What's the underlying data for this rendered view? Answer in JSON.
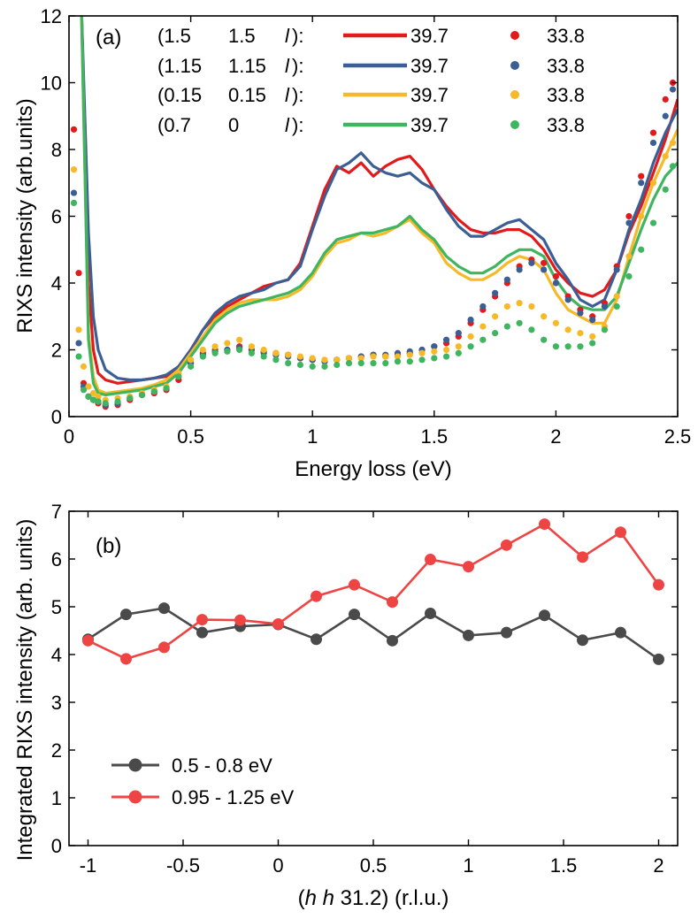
{
  "chart_data": [
    {
      "type": "line",
      "panel_label": "(a)",
      "xlabel": "Energy loss (eV)",
      "ylabel": "RIXS intensity (arb.units)",
      "xlim": [
        0,
        2.5
      ],
      "ylim": [
        0,
        12
      ],
      "xticks": [
        "0",
        "0.5",
        "1",
        "1.5",
        "2",
        "2.5"
      ],
      "yticks": [
        "0",
        "2",
        "4",
        "6",
        "8",
        "10",
        "12"
      ],
      "grid": false,
      "legend_position": "top",
      "legend_rows": [
        {
          "q_h": "(1.5",
          "q_k": "1.5",
          "q_l": "l",
          "q_end": "):",
          "line_label": "39.7",
          "dot_label": "33.8",
          "color": "#e31a1c"
        },
        {
          "q_h": "(1.15",
          "q_k": "1.15",
          "q_l": "l",
          "q_end": "):",
          "line_label": "39.7",
          "dot_label": "33.8",
          "color": "#3b5f95"
        },
        {
          "q_h": "(0.15",
          "q_k": "0.15",
          "q_l": "l",
          "q_end": "):",
          "line_label": "39.7",
          "dot_label": "33.8",
          "color": "#f7b928"
        },
        {
          "q_h": "(0.7",
          "q_k": "0",
          "q_l": "l",
          "q_end": "):",
          "line_label": "39.7",
          "dot_label": "33.8",
          "color": "#3fb560"
        }
      ],
      "series": [
        {
          "style": "line",
          "color": "#e31a1c",
          "x": [
            0.05,
            0.08,
            0.1,
            0.12,
            0.15,
            0.2,
            0.25,
            0.3,
            0.35,
            0.4,
            0.45,
            0.5,
            0.55,
            0.6,
            0.65,
            0.7,
            0.75,
            0.8,
            0.85,
            0.9,
            0.95,
            1.0,
            1.05,
            1.1,
            1.15,
            1.2,
            1.25,
            1.3,
            1.35,
            1.4,
            1.45,
            1.5,
            1.55,
            1.6,
            1.65,
            1.7,
            1.75,
            1.8,
            1.85,
            1.9,
            1.95,
            2.0,
            2.05,
            2.1,
            2.15,
            2.2,
            2.25,
            2.3,
            2.35,
            2.4,
            2.45,
            2.5
          ],
          "y": [
            12.5,
            4.0,
            2.0,
            1.3,
            1.1,
            1.0,
            1.05,
            1.1,
            1.15,
            1.2,
            1.5,
            2.0,
            2.6,
            3.0,
            3.3,
            3.5,
            3.7,
            3.9,
            4.0,
            4.1,
            4.6,
            5.7,
            6.8,
            7.5,
            7.3,
            7.6,
            7.2,
            7.5,
            7.7,
            7.8,
            7.4,
            6.8,
            6.3,
            5.9,
            5.6,
            5.5,
            5.5,
            5.6,
            5.6,
            5.4,
            5.0,
            4.4,
            4.0,
            3.7,
            3.6,
            3.8,
            4.4,
            5.5,
            6.3,
            7.3,
            8.3,
            9.5
          ]
        },
        {
          "style": "line",
          "color": "#3b5f95",
          "x": [
            0.05,
            0.08,
            0.1,
            0.12,
            0.15,
            0.2,
            0.25,
            0.3,
            0.35,
            0.4,
            0.45,
            0.5,
            0.55,
            0.6,
            0.65,
            0.7,
            0.75,
            0.8,
            0.85,
            0.9,
            0.95,
            1.0,
            1.05,
            1.1,
            1.15,
            1.2,
            1.25,
            1.3,
            1.35,
            1.4,
            1.45,
            1.5,
            1.55,
            1.6,
            1.65,
            1.7,
            1.75,
            1.8,
            1.85,
            1.9,
            1.95,
            2.0,
            2.05,
            2.1,
            2.15,
            2.2,
            2.25,
            2.3,
            2.35,
            2.4,
            2.45,
            2.5
          ],
          "y": [
            12.5,
            5.5,
            3.0,
            2.0,
            1.4,
            1.15,
            1.1,
            1.1,
            1.15,
            1.25,
            1.5,
            2.0,
            2.6,
            3.1,
            3.4,
            3.6,
            3.7,
            3.8,
            4.0,
            4.1,
            4.5,
            5.6,
            6.6,
            7.4,
            7.6,
            7.9,
            7.5,
            7.3,
            7.2,
            7.3,
            7.0,
            6.8,
            6.2,
            5.7,
            5.4,
            5.4,
            5.6,
            5.8,
            5.9,
            5.6,
            5.3,
            4.6,
            4.1,
            3.5,
            3.3,
            3.5,
            4.4,
            5.6,
            6.5,
            7.6,
            8.5,
            9.2
          ]
        },
        {
          "style": "line",
          "color": "#f7b928",
          "x": [
            0.05,
            0.08,
            0.1,
            0.12,
            0.15,
            0.2,
            0.25,
            0.3,
            0.35,
            0.4,
            0.45,
            0.5,
            0.55,
            0.6,
            0.65,
            0.7,
            0.75,
            0.8,
            0.85,
            0.9,
            0.95,
            1.0,
            1.05,
            1.1,
            1.15,
            1.2,
            1.25,
            1.3,
            1.35,
            1.4,
            1.45,
            1.5,
            1.55,
            1.6,
            1.65,
            1.7,
            1.75,
            1.8,
            1.85,
            1.9,
            1.95,
            2.0,
            2.05,
            2.1,
            2.15,
            2.2,
            2.25,
            2.3,
            2.35,
            2.4,
            2.45,
            2.5
          ],
          "y": [
            12.5,
            2.5,
            1.2,
            0.8,
            0.7,
            0.75,
            0.8,
            0.85,
            0.95,
            1.1,
            1.4,
            1.9,
            2.4,
            2.9,
            3.2,
            3.4,
            3.5,
            3.5,
            3.5,
            3.6,
            3.8,
            4.2,
            4.8,
            5.2,
            5.3,
            5.5,
            5.4,
            5.5,
            5.7,
            5.9,
            5.5,
            5.2,
            4.6,
            4.3,
            4.1,
            4.1,
            4.3,
            4.6,
            4.8,
            4.7,
            4.4,
            3.7,
            3.2,
            3.0,
            2.8,
            2.8,
            3.5,
            4.8,
            6.0,
            7.0,
            7.8,
            8.6
          ]
        },
        {
          "style": "line",
          "color": "#3fb560",
          "x": [
            0.05,
            0.08,
            0.1,
            0.12,
            0.15,
            0.2,
            0.25,
            0.3,
            0.35,
            0.4,
            0.45,
            0.5,
            0.55,
            0.6,
            0.65,
            0.7,
            0.75,
            0.8,
            0.85,
            0.9,
            0.95,
            1.0,
            1.05,
            1.1,
            1.15,
            1.2,
            1.25,
            1.3,
            1.35,
            1.4,
            1.45,
            1.5,
            1.55,
            1.6,
            1.65,
            1.7,
            1.75,
            1.8,
            1.85,
            1.9,
            1.95,
            2.0,
            2.05,
            2.1,
            2.15,
            2.2,
            2.25,
            2.3,
            2.35,
            2.4,
            2.45,
            2.5
          ],
          "y": [
            12.5,
            2.3,
            1.0,
            0.7,
            0.65,
            0.7,
            0.75,
            0.8,
            0.9,
            1.0,
            1.3,
            1.8,
            2.3,
            2.8,
            3.1,
            3.3,
            3.4,
            3.5,
            3.6,
            3.7,
            3.9,
            4.3,
            4.9,
            5.3,
            5.4,
            5.5,
            5.5,
            5.6,
            5.7,
            6.0,
            5.6,
            5.3,
            4.8,
            4.5,
            4.3,
            4.3,
            4.5,
            4.8,
            5.0,
            5.0,
            4.8,
            4.1,
            3.6,
            3.3,
            3.2,
            3.2,
            3.6,
            4.6,
            5.6,
            6.5,
            7.2,
            7.6
          ]
        },
        {
          "style": "dots",
          "color": "#e31a1c",
          "x": [
            0.02,
            0.04,
            0.06,
            0.08,
            0.1,
            0.12,
            0.15,
            0.2,
            0.25,
            0.3,
            0.35,
            0.4,
            0.45,
            0.5,
            0.55,
            0.6,
            0.65,
            0.7,
            0.75,
            0.8,
            0.85,
            0.9,
            0.95,
            1.0,
            1.05,
            1.1,
            1.15,
            1.2,
            1.25,
            1.3,
            1.35,
            1.4,
            1.45,
            1.5,
            1.55,
            1.6,
            1.65,
            1.7,
            1.75,
            1.8,
            1.85,
            1.9,
            1.95,
            2.0,
            2.05,
            2.1,
            2.15,
            2.2,
            2.25,
            2.3,
            2.35,
            2.4,
            2.45,
            2.48
          ],
          "y": [
            8.6,
            4.3,
            1.0,
            0.6,
            0.5,
            0.4,
            0.3,
            0.35,
            0.5,
            0.65,
            0.7,
            0.8,
            1.1,
            1.6,
            1.9,
            2.0,
            2.0,
            2.1,
            2.0,
            1.95,
            1.9,
            1.85,
            1.75,
            1.7,
            1.65,
            1.7,
            1.75,
            1.8,
            1.85,
            1.8,
            1.85,
            1.9,
            2.0,
            2.1,
            2.2,
            2.4,
            2.8,
            3.2,
            3.6,
            4.0,
            4.5,
            4.7,
            4.6,
            4.2,
            3.6,
            3.2,
            3.0,
            3.4,
            4.5,
            6.0,
            7.2,
            8.5,
            9.5,
            10.0
          ]
        },
        {
          "style": "dots",
          "color": "#3b5f95",
          "x": [
            0.02,
            0.04,
            0.06,
            0.08,
            0.1,
            0.12,
            0.15,
            0.2,
            0.25,
            0.3,
            0.35,
            0.4,
            0.45,
            0.5,
            0.55,
            0.6,
            0.65,
            0.7,
            0.75,
            0.8,
            0.85,
            0.9,
            0.95,
            1.0,
            1.05,
            1.1,
            1.15,
            1.2,
            1.25,
            1.3,
            1.35,
            1.4,
            1.45,
            1.5,
            1.55,
            1.6,
            1.65,
            1.7,
            1.75,
            1.8,
            1.85,
            1.9,
            1.95,
            2.0,
            2.05,
            2.1,
            2.15,
            2.2,
            2.25,
            2.3,
            2.35,
            2.4,
            2.45,
            2.48
          ],
          "y": [
            6.7,
            2.2,
            0.9,
            0.6,
            0.5,
            0.45,
            0.35,
            0.4,
            0.55,
            0.65,
            0.75,
            0.85,
            1.2,
            1.6,
            1.85,
            1.95,
            2.0,
            2.05,
            2.0,
            1.9,
            1.85,
            1.8,
            1.75,
            1.7,
            1.65,
            1.7,
            1.75,
            1.8,
            1.85,
            1.85,
            1.9,
            1.95,
            2.0,
            2.1,
            2.3,
            2.5,
            2.9,
            3.3,
            3.7,
            4.1,
            4.4,
            4.6,
            4.4,
            4.0,
            3.5,
            3.1,
            2.9,
            3.3,
            4.4,
            5.8,
            7.0,
            8.2,
            9.0,
            9.8
          ]
        },
        {
          "style": "dots",
          "color": "#f7b928",
          "x": [
            0.02,
            0.04,
            0.06,
            0.08,
            0.1,
            0.12,
            0.15,
            0.2,
            0.25,
            0.3,
            0.35,
            0.4,
            0.45,
            0.5,
            0.55,
            0.6,
            0.65,
            0.7,
            0.75,
            0.8,
            0.85,
            0.9,
            0.95,
            1.0,
            1.05,
            1.1,
            1.15,
            1.2,
            1.25,
            1.3,
            1.35,
            1.4,
            1.45,
            1.5,
            1.55,
            1.6,
            1.65,
            1.7,
            1.75,
            1.8,
            1.85,
            1.9,
            1.95,
            2.0,
            2.05,
            2.1,
            2.15,
            2.2,
            2.25,
            2.3,
            2.35,
            2.4,
            2.45,
            2.48
          ],
          "y": [
            7.4,
            2.6,
            1.5,
            0.9,
            0.7,
            0.6,
            0.5,
            0.55,
            0.6,
            0.7,
            0.8,
            0.9,
            1.3,
            1.7,
            2.0,
            2.1,
            2.2,
            2.3,
            2.1,
            2.0,
            1.9,
            1.85,
            1.8,
            1.75,
            1.7,
            1.7,
            1.75,
            1.75,
            1.8,
            1.8,
            1.8,
            1.85,
            1.9,
            1.95,
            2.0,
            2.1,
            2.4,
            2.7,
            3.0,
            3.3,
            3.4,
            3.3,
            3.0,
            2.8,
            2.6,
            2.5,
            2.4,
            2.7,
            3.6,
            4.8,
            6.0,
            7.0,
            7.8,
            8.2
          ]
        },
        {
          "style": "dots",
          "color": "#3fb560",
          "x": [
            0.02,
            0.04,
            0.06,
            0.08,
            0.1,
            0.12,
            0.15,
            0.2,
            0.25,
            0.3,
            0.35,
            0.4,
            0.45,
            0.5,
            0.55,
            0.6,
            0.65,
            0.7,
            0.75,
            0.8,
            0.85,
            0.9,
            0.95,
            1.0,
            1.05,
            1.1,
            1.15,
            1.2,
            1.25,
            1.3,
            1.35,
            1.4,
            1.45,
            1.5,
            1.55,
            1.6,
            1.65,
            1.7,
            1.75,
            1.8,
            1.85,
            1.9,
            1.95,
            2.0,
            2.05,
            2.1,
            2.15,
            2.2,
            2.25,
            2.3,
            2.35,
            2.4,
            2.45,
            2.48
          ],
          "y": [
            6.4,
            1.8,
            0.8,
            0.6,
            0.5,
            0.45,
            0.4,
            0.45,
            0.55,
            0.65,
            0.75,
            0.85,
            1.2,
            1.5,
            1.8,
            1.9,
            1.95,
            2.0,
            1.9,
            1.8,
            1.7,
            1.6,
            1.55,
            1.5,
            1.5,
            1.55,
            1.6,
            1.6,
            1.6,
            1.6,
            1.65,
            1.65,
            1.7,
            1.75,
            1.8,
            1.9,
            2.1,
            2.3,
            2.5,
            2.7,
            2.8,
            2.6,
            2.3,
            2.1,
            2.1,
            2.1,
            2.2,
            2.6,
            3.3,
            4.2,
            5.0,
            5.8,
            6.8,
            7.5
          ]
        }
      ]
    },
    {
      "type": "line",
      "panel_label": "(b)",
      "xlabel": "(h  h  31.2) (r.l.u.)",
      "ylabel": "Integrated RIXS intensity (arb. units)",
      "xlim": [
        -1.1,
        2.1
      ],
      "ylim": [
        0,
        7
      ],
      "xticks": [
        "-1",
        "-0.5",
        "0",
        "0.5",
        "1",
        "1.5",
        "2"
      ],
      "yticks": [
        "0",
        "1",
        "2",
        "3",
        "4",
        "5",
        "6",
        "7"
      ],
      "grid": false,
      "legend_position": "lower-left",
      "series": [
        {
          "name": "0.5 - 0.8 eV",
          "color": "#4a4a4a",
          "x": [
            -1.0,
            -0.8,
            -0.6,
            -0.4,
            -0.2,
            0.0,
            0.2,
            0.4,
            0.6,
            0.8,
            1.0,
            1.2,
            1.4,
            1.6,
            1.8,
            2.0
          ],
          "y": [
            4.32,
            4.84,
            4.97,
            4.46,
            4.59,
            4.63,
            4.32,
            4.84,
            4.29,
            4.86,
            4.4,
            4.46,
            4.82,
            4.3,
            4.46,
            3.9
          ]
        },
        {
          "name": "0.95 - 1.25 eV",
          "color": "#ee4444",
          "x": [
            -1.0,
            -0.8,
            -0.6,
            -0.4,
            -0.2,
            0.0,
            0.2,
            0.4,
            0.6,
            0.8,
            1.0,
            1.2,
            1.4,
            1.6,
            1.8,
            2.0
          ],
          "y": [
            4.29,
            3.91,
            4.15,
            4.73,
            4.72,
            4.64,
            5.22,
            5.46,
            5.1,
            5.99,
            5.84,
            6.29,
            6.73,
            6.04,
            6.56,
            5.46
          ]
        }
      ]
    }
  ]
}
